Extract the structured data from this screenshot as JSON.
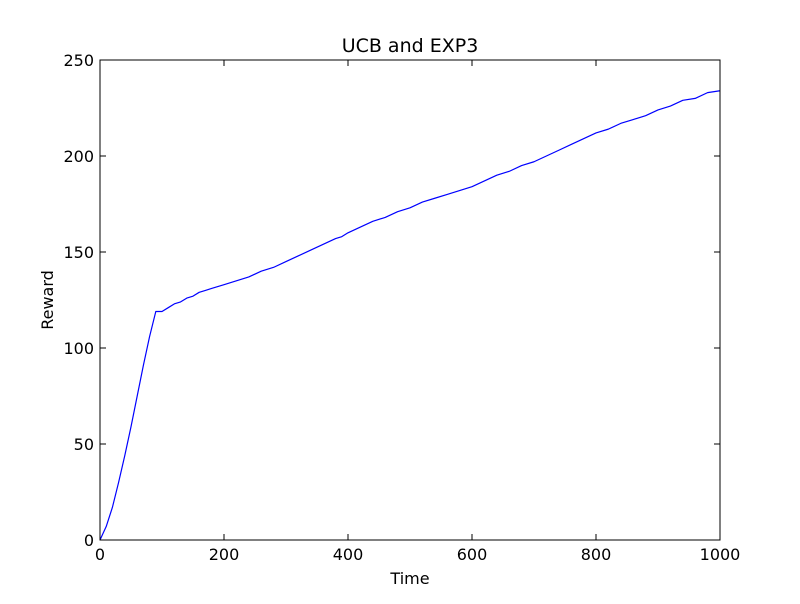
{
  "chart_data": {
    "type": "line",
    "title": "UCB and EXP3",
    "xlabel": "Time",
    "ylabel": "Reward",
    "xlim": [
      0,
      1000
    ],
    "ylim": [
      0,
      250
    ],
    "xticks": [
      0,
      200,
      400,
      600,
      800,
      1000
    ],
    "yticks": [
      0,
      50,
      100,
      150,
      200,
      250
    ],
    "grid": false,
    "series": [
      {
        "color": "#0000ff",
        "x": [
          0,
          10,
          20,
          30,
          40,
          50,
          60,
          70,
          80,
          90,
          100,
          110,
          120,
          130,
          140,
          150,
          160,
          170,
          180,
          190,
          200,
          220,
          240,
          260,
          280,
          300,
          320,
          340,
          360,
          380,
          390,
          400,
          420,
          440,
          460,
          480,
          500,
          520,
          540,
          560,
          580,
          600,
          620,
          640,
          660,
          680,
          700,
          720,
          740,
          760,
          780,
          800,
          820,
          840,
          860,
          880,
          900,
          920,
          940,
          960,
          980,
          1000
        ],
        "y": [
          0,
          7,
          17,
          30,
          44,
          59,
          75,
          91,
          106,
          119,
          119,
          121,
          123,
          124,
          126,
          127,
          129,
          130,
          131,
          132,
          133,
          135,
          137,
          140,
          142,
          145,
          148,
          151,
          154,
          157,
          158,
          160,
          163,
          166,
          168,
          171,
          173,
          176,
          178,
          180,
          182,
          184,
          187,
          190,
          192,
          195,
          197,
          200,
          203,
          206,
          209,
          212,
          214,
          217,
          219,
          221,
          224,
          226,
          229,
          230,
          233,
          234
        ]
      }
    ]
  }
}
